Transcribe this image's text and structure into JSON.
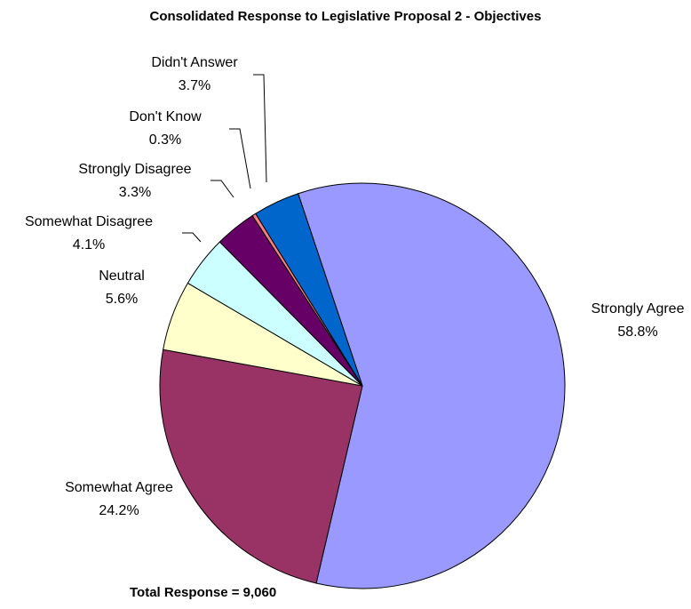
{
  "chart_data": {
    "type": "pie",
    "title": "Consolidated Response to Legislative Proposal 2 - Objectives",
    "footer": "Total Response = 9,060",
    "slices": [
      {
        "label": "Strongly Agree",
        "percent_label": "58.8%",
        "value": 58.8,
        "color": "#9999ff"
      },
      {
        "label": "Somewhat Agree",
        "percent_label": "24.2%",
        "value": 24.2,
        "color": "#993366"
      },
      {
        "label": "Neutral",
        "percent_label": "5.6%",
        "value": 5.6,
        "color": "#ffffcc"
      },
      {
        "label": "Somewhat Disagree",
        "percent_label": "4.1%",
        "value": 4.1,
        "color": "#ccffff"
      },
      {
        "label": "Strongly Disagree",
        "percent_label": "3.3%",
        "value": 3.3,
        "color": "#660066"
      },
      {
        "label": "Don't Know",
        "percent_label": "0.3%",
        "value": 0.3,
        "color": "#ff8080"
      },
      {
        "label": "Didn't Answer",
        "percent_label": "3.7%",
        "value": 3.7,
        "color": "#0066cc"
      }
    ]
  }
}
